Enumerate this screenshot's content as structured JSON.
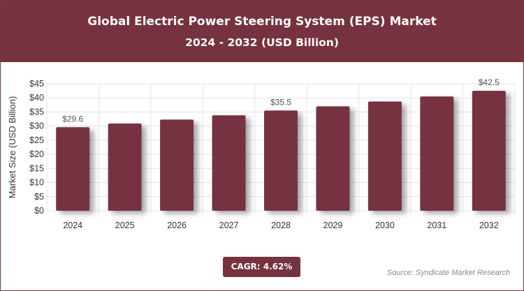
{
  "header": {
    "title": "Global Electric Power Steering System (EPS) Market",
    "subtitle": "2024 - 2032 (USD Billion)"
  },
  "footer": {
    "cagr": "CAGR: 4.62%",
    "source": "Source: Syndicate Market Research"
  },
  "colors": {
    "header": "#76323f",
    "bar": "#76323f"
  },
  "chart_data": {
    "type": "bar",
    "title": "Global Electric Power Steering System (EPS) Market",
    "subtitle": "2024 - 2032 (USD Billion)",
    "ylabel": "Market Size (USD Billion)",
    "xlabel": "",
    "categories": [
      "2024",
      "2025",
      "2026",
      "2027",
      "2028",
      "2029",
      "2030",
      "2031",
      "2032"
    ],
    "values": [
      29.6,
      30.9,
      32.3,
      33.8,
      35.5,
      37.0,
      38.7,
      40.5,
      42.5
    ],
    "data_labels": {
      "2024": "$29.6",
      "2028": "$35.5",
      "2032": "$42.5"
    },
    "yticks": [
      "$0",
      "$5",
      "$10",
      "$15",
      "$20",
      "$25",
      "$30",
      "$35",
      "$40",
      "$45"
    ],
    "ylim": [
      0,
      45
    ],
    "grid": true
  }
}
